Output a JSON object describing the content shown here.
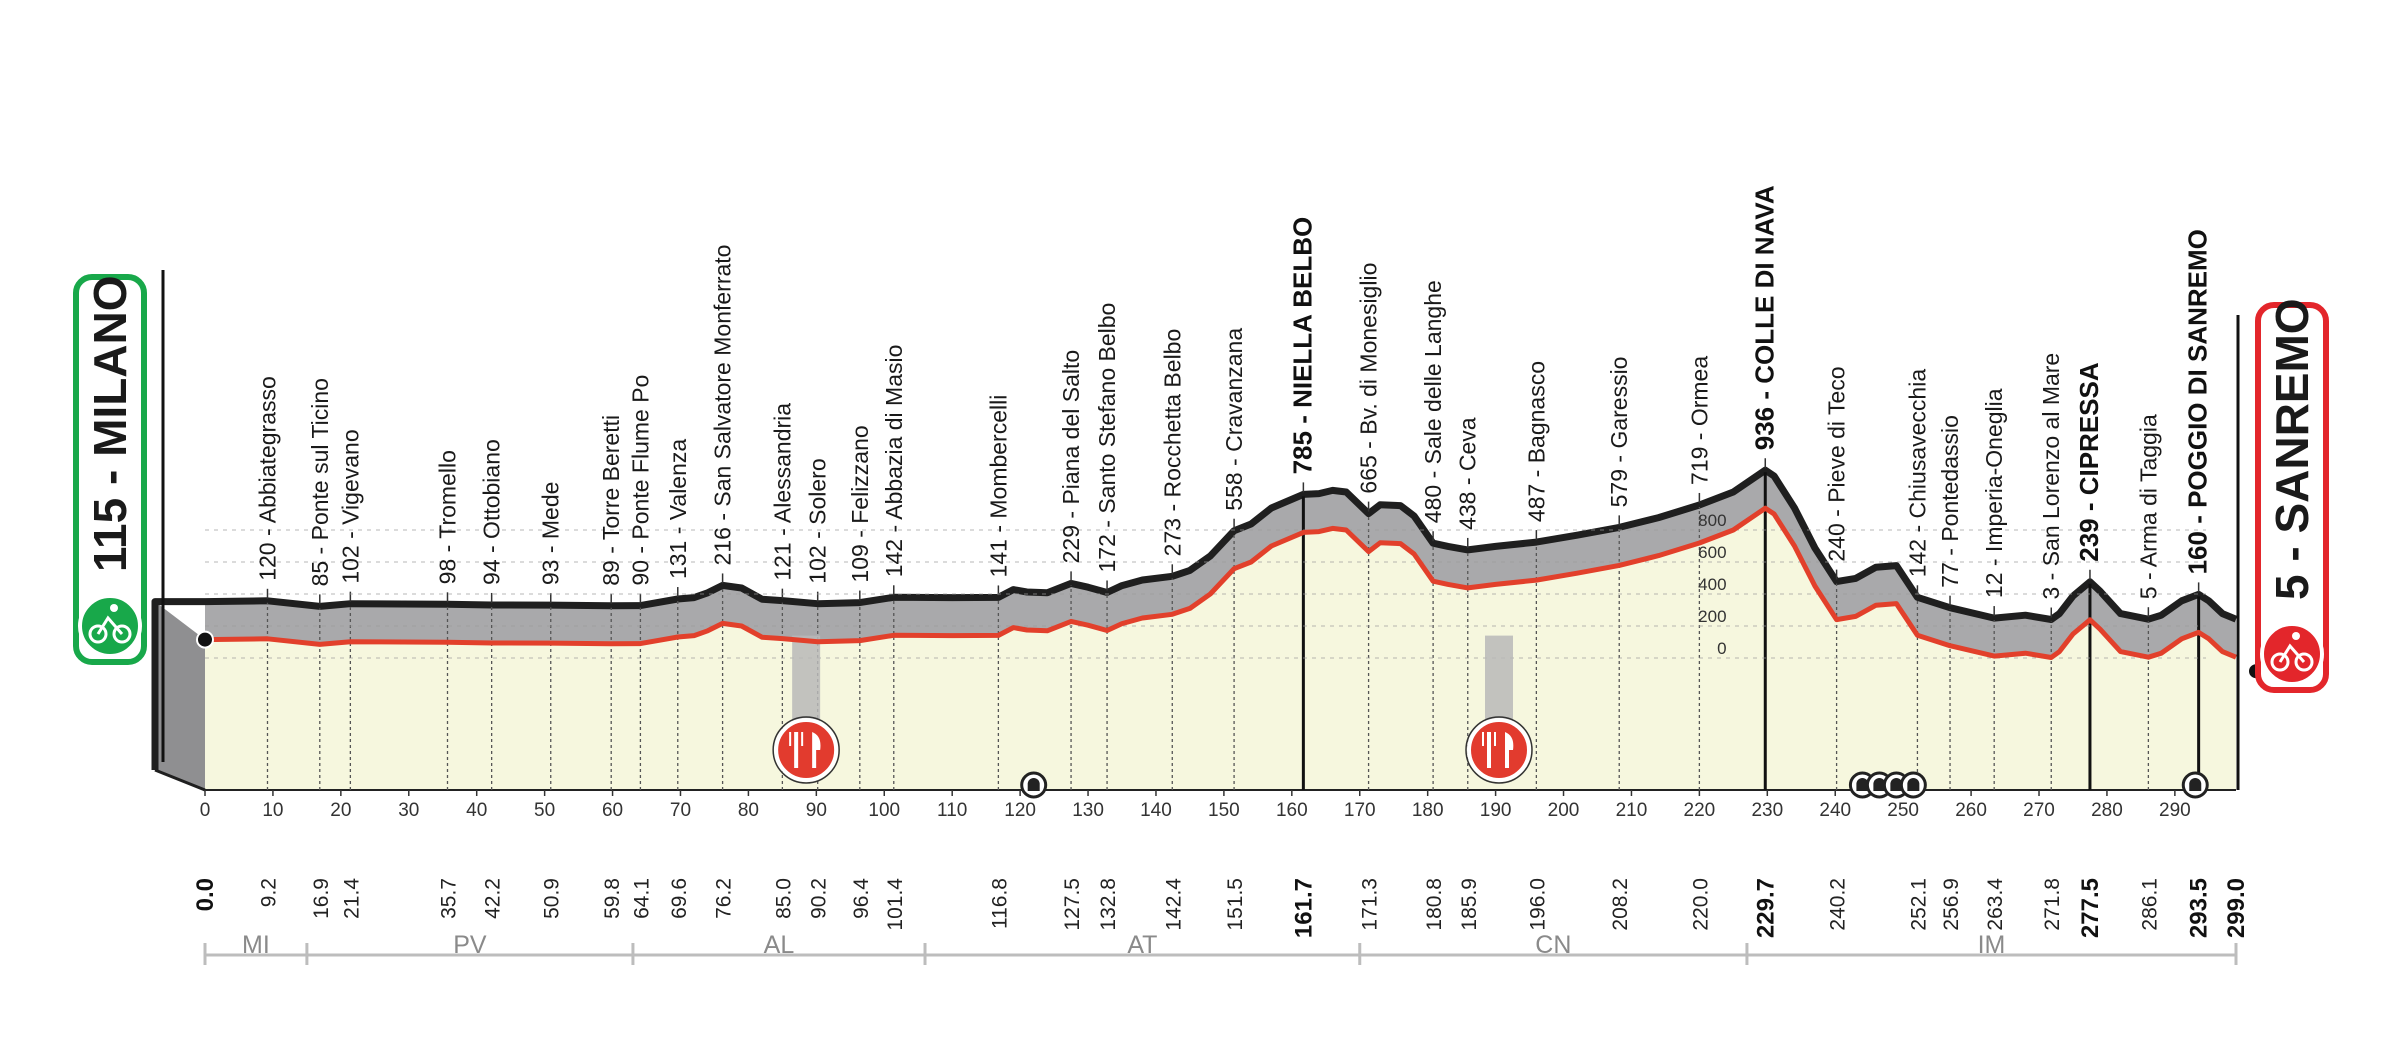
{
  "start": {
    "name": "MILANO",
    "altitude": 115,
    "color": "#18a84a"
  },
  "finish": {
    "name": "SANREMO",
    "altitude": 5,
    "color": "#e3262b"
  },
  "distance_total": 299.0,
  "profile_colors": {
    "fill": "#f6f7de",
    "side": "#a9a9ab",
    "top": "#1f1f1f",
    "road": "#e2402b",
    "grid": "#9a9a9a"
  },
  "altitude_ticks": [
    {
      "label": "800",
      "value": 800
    },
    {
      "label": "600",
      "value": 600
    },
    {
      "label": "400",
      "value": 400
    },
    {
      "label": "200",
      "value": 200
    },
    {
      "label": "0",
      "value": 0
    }
  ],
  "km_ticks": [
    "0",
    "10",
    "20",
    "30",
    "40",
    "50",
    "60",
    "70",
    "80",
    "90",
    "100",
    "110",
    "120",
    "130",
    "140",
    "150",
    "160",
    "170",
    "180",
    "190",
    "200",
    "210",
    "220",
    "230",
    "240",
    "250",
    "260",
    "270",
    "280",
    "290"
  ],
  "waypoints": [
    {
      "km": 9.2,
      "split": "9.2",
      "label": "120 - Abbiategrasso",
      "bold": false
    },
    {
      "km": 16.9,
      "split": "16.9",
      "label": "85 - Ponte sul Ticino",
      "bold": false
    },
    {
      "km": 21.4,
      "split": "21.4",
      "label": "102 - Vigevano",
      "bold": false
    },
    {
      "km": 35.7,
      "split": "35.7",
      "label": "98 - Tromello",
      "bold": false
    },
    {
      "km": 42.2,
      "split": "42.2",
      "label": "94 - Ottobiano",
      "bold": false
    },
    {
      "km": 50.9,
      "split": "50.9",
      "label": "93 - Mede",
      "bold": false
    },
    {
      "km": 59.8,
      "split": "59.8",
      "label": "89 - Torre Beretti",
      "bold": false
    },
    {
      "km": 64.1,
      "split": "64.1",
      "label": "90 - Ponte Flume Po",
      "bold": false
    },
    {
      "km": 69.6,
      "split": "69.6",
      "label": "131 - Valenza",
      "bold": false
    },
    {
      "km": 76.2,
      "split": "76.2",
      "label": "216 - San Salvatore Monferrato",
      "bold": false
    },
    {
      "km": 85.0,
      "split": "85.0",
      "label": "121 - Alessandria",
      "bold": false
    },
    {
      "km": 90.2,
      "split": "90.2",
      "label": "102 - Solero",
      "bold": false
    },
    {
      "km": 96.4,
      "split": "96.4",
      "label": "109 - Felizzano",
      "bold": false
    },
    {
      "km": 101.4,
      "split": "101.4",
      "label": "142 - Abbazia di Masio",
      "bold": false
    },
    {
      "km": 116.8,
      "split": "116.8",
      "label": "141 - Mombercelli",
      "bold": false
    },
    {
      "km": 127.5,
      "split": "127.5",
      "label": "229 - Piana del Salto",
      "bold": false
    },
    {
      "km": 132.8,
      "split": "132.8",
      "label": "172 - Santo Stefano Belbo",
      "bold": false
    },
    {
      "km": 142.4,
      "split": "142.4",
      "label": "273 - Rocchetta Belbo",
      "bold": false
    },
    {
      "km": 151.5,
      "split": "151.5",
      "label": "558 - Cravanzana",
      "bold": false
    },
    {
      "km": 161.7,
      "split": "161.7",
      "label": "785 - NIELLA BELBO",
      "bold": true
    },
    {
      "km": 171.3,
      "split": "171.3",
      "label": "665 - Bv. di Monesiglio",
      "bold": false
    },
    {
      "km": 180.8,
      "split": "180.8",
      "label": "480 - Sale delle Langhe",
      "bold": false
    },
    {
      "km": 185.9,
      "split": "185.9",
      "label": "438 - Ceva",
      "bold": false
    },
    {
      "km": 196.0,
      "split": "196.0",
      "label": "487 - Bagnasco",
      "bold": false
    },
    {
      "km": 208.2,
      "split": "208.2",
      "label": "579 - Garessio",
      "bold": false
    },
    {
      "km": 220.0,
      "split": "220.0",
      "label": "719 - Ormea",
      "bold": false
    },
    {
      "km": 229.7,
      "split": "229.7",
      "label": "936 - COLLE DI NAVA",
      "bold": true
    },
    {
      "km": 240.2,
      "split": "240.2",
      "label": "240 - Pieve di Teco",
      "bold": false
    },
    {
      "km": 252.1,
      "split": "252.1",
      "label": "142 - Chiusavecchia",
      "bold": false
    },
    {
      "km": 256.9,
      "split": "256.9",
      "label": "77 - Pontedassio",
      "bold": false
    },
    {
      "km": 263.4,
      "split": "263.4",
      "label": "12 - Imperia-Oneglia",
      "bold": false
    },
    {
      "km": 271.8,
      "split": "271.8",
      "label": "3 - San Lorenzo al Mare",
      "bold": false
    },
    {
      "km": 277.5,
      "split": "277.5",
      "label": "239 - CIPRESSA",
      "bold": true
    },
    {
      "km": 286.1,
      "split": "286.1",
      "label": "5 - Arma di Taggia",
      "bold": false
    },
    {
      "km": 293.5,
      "split": "293.5",
      "label": "160 - POGGIO DI SANREMO",
      "bold": true
    }
  ],
  "start_split": "0.0",
  "finish_split": "299.0",
  "profile_points": [
    [
      0,
      115
    ],
    [
      9.2,
      120
    ],
    [
      16.9,
      85
    ],
    [
      21.4,
      102
    ],
    [
      35.7,
      98
    ],
    [
      42.2,
      94
    ],
    [
      50.9,
      93
    ],
    [
      59.8,
      89
    ],
    [
      64.1,
      90
    ],
    [
      69.6,
      131
    ],
    [
      72,
      140
    ],
    [
      74,
      170
    ],
    [
      76.2,
      216
    ],
    [
      79,
      200
    ],
    [
      82,
      130
    ],
    [
      85.0,
      121
    ],
    [
      90.2,
      102
    ],
    [
      96.4,
      109
    ],
    [
      101.4,
      142
    ],
    [
      110,
      140
    ],
    [
      116.8,
      141
    ],
    [
      119,
      190
    ],
    [
      121,
      175
    ],
    [
      124,
      170
    ],
    [
      127.5,
      229
    ],
    [
      130,
      205
    ],
    [
      132.8,
      172
    ],
    [
      135,
      215
    ],
    [
      138,
      250
    ],
    [
      142.4,
      273
    ],
    [
      145,
      310
    ],
    [
      148,
      400
    ],
    [
      151.5,
      558
    ],
    [
      154,
      600
    ],
    [
      157,
      700
    ],
    [
      161.7,
      785
    ],
    [
      164,
      790
    ],
    [
      166,
      810
    ],
    [
      168,
      800
    ],
    [
      171.3,
      665
    ],
    [
      173,
      720
    ],
    [
      176,
      715
    ],
    [
      178,
      650
    ],
    [
      180.8,
      480
    ],
    [
      183,
      460
    ],
    [
      185.9,
      438
    ],
    [
      190,
      460
    ],
    [
      196.0,
      487
    ],
    [
      202,
      530
    ],
    [
      208.2,
      579
    ],
    [
      214,
      640
    ],
    [
      220.0,
      719
    ],
    [
      225,
      800
    ],
    [
      229.7,
      936
    ],
    [
      231,
      900
    ],
    [
      234,
      700
    ],
    [
      237,
      450
    ],
    [
      240.2,
      240
    ],
    [
      243,
      260
    ],
    [
      246,
      330
    ],
    [
      249,
      340
    ],
    [
      252.1,
      142
    ],
    [
      256.9,
      77
    ],
    [
      263.4,
      12
    ],
    [
      268,
      30
    ],
    [
      271.8,
      3
    ],
    [
      273,
      40
    ],
    [
      275,
      150
    ],
    [
      277.5,
      239
    ],
    [
      279,
      180
    ],
    [
      282,
      40
    ],
    [
      286.1,
      5
    ],
    [
      288,
      30
    ],
    [
      291,
      120
    ],
    [
      293.5,
      160
    ],
    [
      295,
      120
    ],
    [
      297,
      40
    ],
    [
      299,
      5
    ]
  ],
  "feed_zones": [
    {
      "km": 88.5
    },
    {
      "km": 190.5
    }
  ],
  "tunnels": [
    {
      "km": 122
    },
    {
      "km": 244
    },
    {
      "km": 246.5
    },
    {
      "km": 249
    },
    {
      "km": 251.5
    },
    {
      "km": 293
    }
  ],
  "provinces": [
    {
      "code": "MI",
      "from": 0,
      "to": 15
    },
    {
      "code": "PV",
      "from": 15,
      "to": 63
    },
    {
      "code": "AL",
      "from": 63,
      "to": 106
    },
    {
      "code": "AT",
      "from": 106,
      "to": 170
    },
    {
      "code": "CN",
      "from": 170,
      "to": 227
    },
    {
      "code": "IM",
      "from": 227,
      "to": 299
    }
  ]
}
